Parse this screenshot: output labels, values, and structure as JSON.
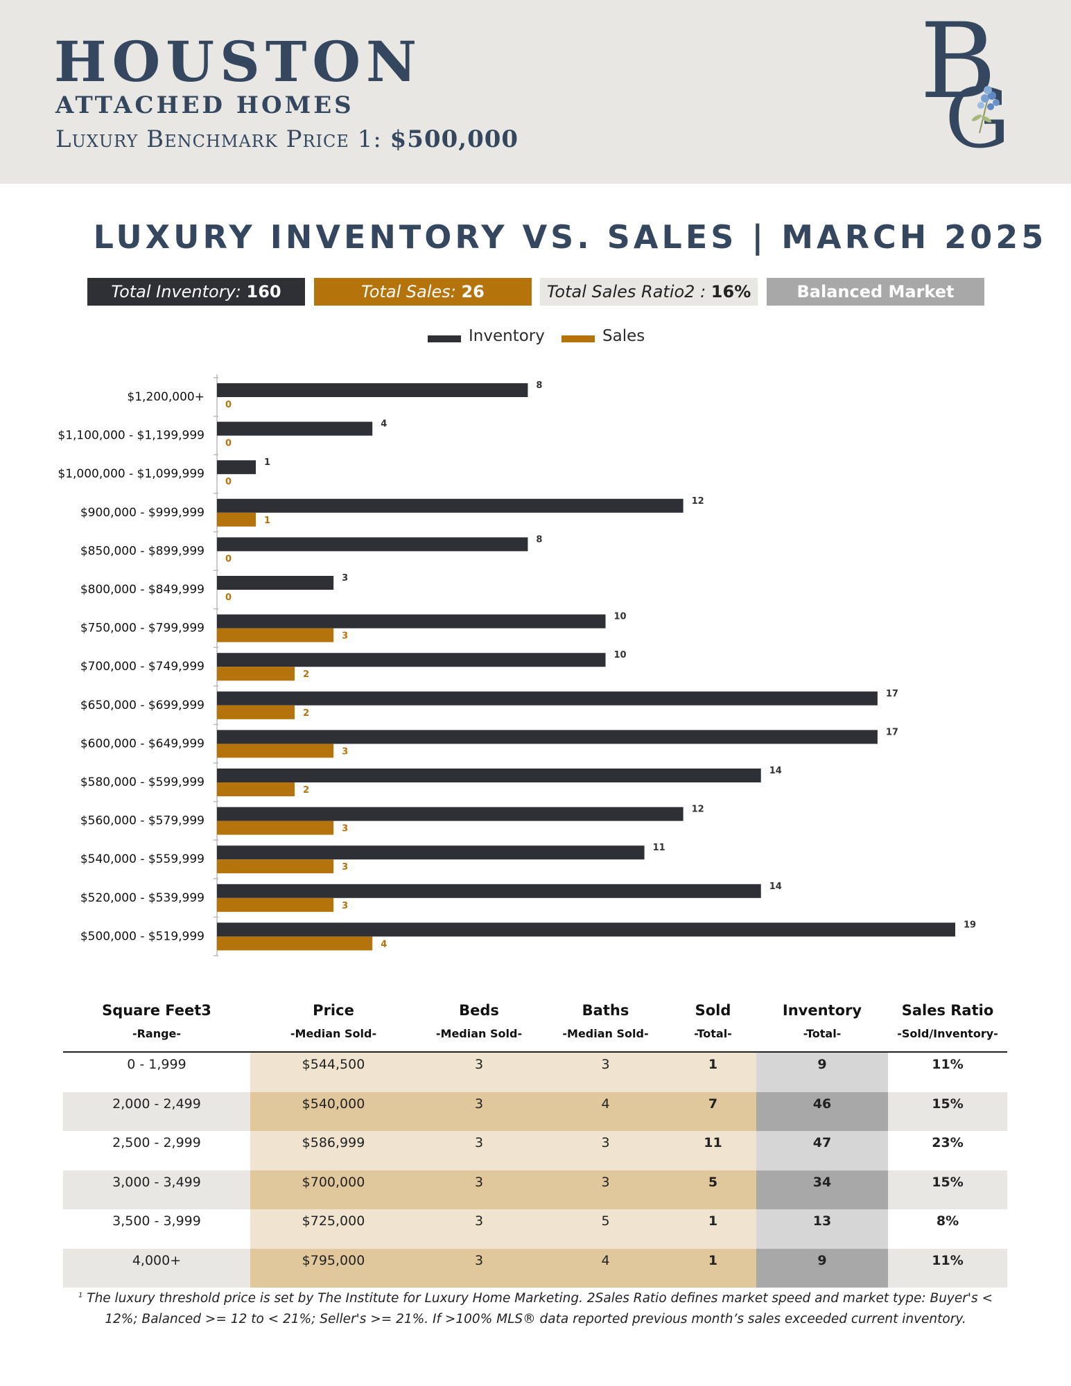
{
  "header": {
    "city": "HOUSTON",
    "subtitle": "ATTACHED HOMES",
    "benchmark_label": "Luxury Benchmark Price 1: ",
    "benchmark_value": "$500,000",
    "logo_text": "BG"
  },
  "title": "LUXURY INVENTORY VS. SALES | MARCH 2025",
  "stats": {
    "inventory_label": "Total Inventory: ",
    "inventory_value": "160",
    "sales_label": "Total Sales: ",
    "sales_value": "26",
    "ratio_label": "Total Sales Ratio2 : ",
    "ratio_value": "16%",
    "market": "Balanced Market"
  },
  "colors": {
    "inventory": "#2f2f36",
    "sales": "#b5730c",
    "navy": "#34475f"
  },
  "chart_data": {
    "type": "bar",
    "orientation": "horizontal",
    "categories": [
      "$1,200,000+",
      "$1,100,000 - $1,199,999",
      "$1,000,000 - $1,099,999",
      "$900,000 - $999,999",
      "$850,000 - $899,999",
      "$800,000 - $849,999",
      "$750,000 - $799,999",
      "$700,000 - $749,999",
      "$650,000 - $699,999",
      "$600,000 - $649,999",
      "$580,000 - $599,999",
      "$560,000 - $579,999",
      "$540,000 - $559,999",
      "$520,000 - $539,999",
      "$500,000 - $519,999"
    ],
    "series": [
      {
        "name": "Inventory",
        "values": [
          8,
          4,
          1,
          12,
          8,
          3,
          10,
          10,
          17,
          17,
          14,
          12,
          11,
          14,
          19
        ]
      },
      {
        "name": "Sales",
        "values": [
          0,
          0,
          0,
          1,
          0,
          0,
          3,
          2,
          2,
          3,
          2,
          3,
          3,
          3,
          4
        ]
      }
    ],
    "xlim": [
      0,
      19
    ],
    "legend": "top-center",
    "grid": false
  },
  "table": {
    "headers": [
      {
        "title": "Square Feet3",
        "sub": "-Range-"
      },
      {
        "title": "Price",
        "sub": "-Median Sold-"
      },
      {
        "title": "Beds",
        "sub": "-Median Sold-"
      },
      {
        "title": "Baths",
        "sub": "-Median Sold-"
      },
      {
        "title": "Sold",
        "sub": "-Total-"
      },
      {
        "title": "Inventory",
        "sub": "-Total-"
      },
      {
        "title": "Sales Ratio",
        "sub": "-Sold/Inventory-"
      }
    ],
    "rows": [
      [
        "0 - 1,999",
        "$544,500",
        "3",
        "3",
        "1",
        "9",
        "11%"
      ],
      [
        "2,000 - 2,499",
        "$540,000",
        "3",
        "4",
        "7",
        "46",
        "15%"
      ],
      [
        "2,500 - 2,999",
        "$586,999",
        "3",
        "3",
        "11",
        "47",
        "23%"
      ],
      [
        "3,000 - 3,499",
        "$700,000",
        "3",
        "3",
        "5",
        "34",
        "15%"
      ],
      [
        "3,500 - 3,999",
        "$725,000",
        "3",
        "5",
        "1",
        "13",
        "8%"
      ],
      [
        "4,000+",
        "$795,000",
        "3",
        "4",
        "1",
        "9",
        "11%"
      ]
    ]
  },
  "footnote": {
    "marker": "1",
    "text": " The luxury threshold price is set by The Institute for Luxury Home Marketing. 2Sales Ratio defines market speed and market type: Buyer's < 12%; Balanced >= 12 to < 21%; Seller's >= 21%. If >100% MLS® data reported previous month’s sales exceeded current inventory."
  }
}
